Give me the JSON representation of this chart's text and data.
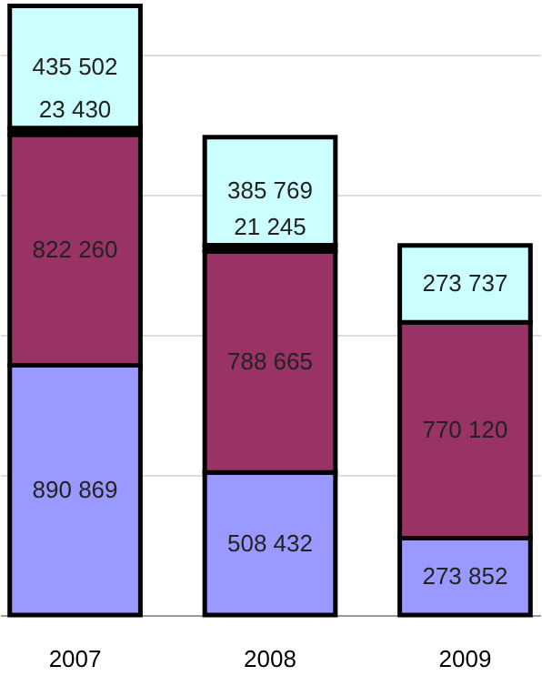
{
  "chart_data": {
    "type": "bar",
    "stacked": true,
    "categories": [
      "2007",
      "2008",
      "2009"
    ],
    "series": [
      {
        "color": "#9999ff",
        "values": [
          890869,
          508432,
          273852
        ],
        "value_labels": [
          "890 869",
          "508 432",
          "273 852"
        ]
      },
      {
        "color": "#993366",
        "values": [
          822260,
          788665,
          770120
        ],
        "value_labels": [
          "822 260",
          "788 665",
          "770 120"
        ]
      },
      {
        "color": "#000000",
        "values": [
          23430,
          21245,
          null
        ],
        "value_labels": [
          "23 430",
          "21 245",
          null
        ]
      },
      {
        "color": "#ccffff",
        "values": [
          435502,
          385769,
          273737
        ],
        "value_labels": [
          "435 502",
          "385 769",
          "273 737"
        ]
      }
    ],
    "ylim": [
      0,
      2180000
    ],
    "yticks": [
      {
        "value": 0,
        "label": null
      },
      {
        "value": 500000,
        "label": null
      },
      {
        "value": 1000000,
        "label": null
      },
      {
        "value": 1500000,
        "label": null
      },
      {
        "value": 2000000,
        "label": null
      }
    ],
    "grid": "y",
    "tick_labels": "x",
    "legend": false
  }
}
